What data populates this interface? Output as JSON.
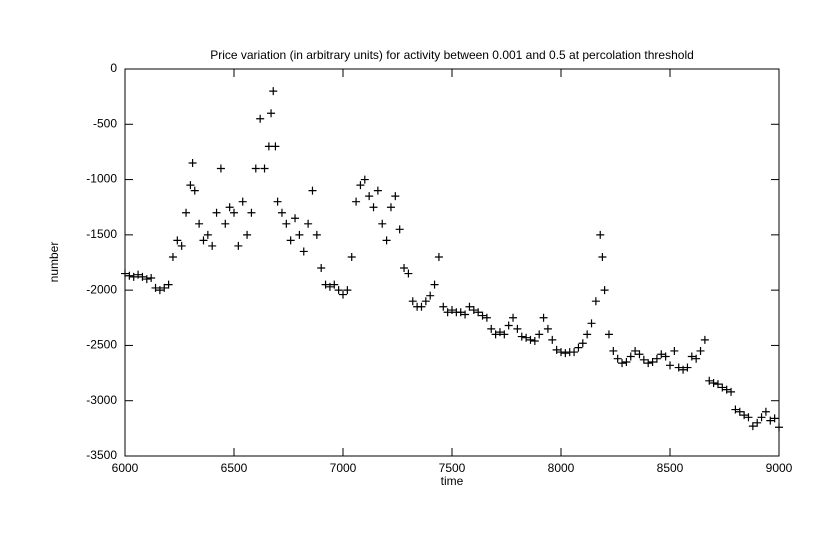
{
  "chart_data": {
    "type": "scatter",
    "title": "Price variation (in arbitrary units) for activity between 0.001 and 0.5 at percolation threshold",
    "x_label": "time",
    "y_label": "number",
    "marker": "+",
    "color": "#000000",
    "xlim": [
      6000,
      9000
    ],
    "xticks": [
      6000,
      6500,
      7000,
      7500,
      8000,
      8500,
      9000
    ],
    "ylim": [
      -3500,
      0
    ],
    "yticks": [
      0,
      -500,
      -1000,
      -1500,
      -2000,
      -2500,
      -3000,
      -3500
    ],
    "x": [
      6000,
      6020,
      6040,
      6060,
      6080,
      6100,
      6120,
      6140,
      6160,
      6180,
      6200,
      6220,
      6240,
      6260,
      6280,
      6300,
      6310,
      6320,
      6340,
      6360,
      6380,
      6400,
      6420,
      6440,
      6460,
      6480,
      6500,
      6520,
      6540,
      6560,
      6580,
      6600,
      6620,
      6640,
      6660,
      6670,
      6680,
      6690,
      6700,
      6720,
      6740,
      6760,
      6780,
      6800,
      6820,
      6840,
      6860,
      6880,
      6900,
      6920,
      6940,
      6960,
      6980,
      7000,
      7020,
      7040,
      7060,
      7080,
      7100,
      7120,
      7140,
      7160,
      7180,
      7200,
      7220,
      7240,
      7260,
      7280,
      7300,
      7320,
      7340,
      7360,
      7380,
      7400,
      7420,
      7440,
      7460,
      7480,
      7500,
      7520,
      7540,
      7560,
      7580,
      7600,
      7620,
      7640,
      7660,
      7680,
      7700,
      7720,
      7740,
      7760,
      7780,
      7800,
      7820,
      7840,
      7860,
      7880,
      7900,
      7920,
      7940,
      7960,
      7980,
      8000,
      8020,
      8040,
      8060,
      8080,
      8100,
      8120,
      8140,
      8160,
      8180,
      8190,
      8200,
      8220,
      8240,
      8260,
      8280,
      8300,
      8320,
      8340,
      8360,
      8380,
      8400,
      8420,
      8440,
      8460,
      8480,
      8500,
      8520,
      8540,
      8560,
      8580,
      8600,
      8620,
      8640,
      8660,
      8680,
      8700,
      8720,
      8740,
      8760,
      8780,
      8800,
      8820,
      8840,
      8860,
      8880,
      8900,
      8920,
      8940,
      8960,
      8980,
      9000
    ],
    "values": [
      -1850,
      -1870,
      -1880,
      -1860,
      -1880,
      -1900,
      -1890,
      -1980,
      -2000,
      -1980,
      -1950,
      -1700,
      -1550,
      -1600,
      -1300,
      -1050,
      -850,
      -1100,
      -1400,
      -1550,
      -1500,
      -1600,
      -1300,
      -900,
      -1400,
      -1250,
      -1300,
      -1600,
      -1200,
      -1500,
      -1300,
      -900,
      -450,
      -900,
      -700,
      -400,
      -200,
      -700,
      -1200,
      -1300,
      -1400,
      -1550,
      -1350,
      -1500,
      -1650,
      -1400,
      -1100,
      -1500,
      -1800,
      -1950,
      -1970,
      -1950,
      -2000,
      -2040,
      -2000,
      -1700,
      -1200,
      -1050,
      -1000,
      -1150,
      -1250,
      -1100,
      -1400,
      -1550,
      -1250,
      -1150,
      -1450,
      -1800,
      -1850,
      -2100,
      -2150,
      -2150,
      -2100,
      -2050,
      -1950,
      -1700,
      -2150,
      -2200,
      -2180,
      -2200,
      -2200,
      -2220,
      -2150,
      -2180,
      -2200,
      -2230,
      -2250,
      -2350,
      -2400,
      -2380,
      -2400,
      -2320,
      -2250,
      -2350,
      -2420,
      -2430,
      -2450,
      -2460,
      -2400,
      -2250,
      -2350,
      -2450,
      -2540,
      -2560,
      -2570,
      -2560,
      -2560,
      -2520,
      -2480,
      -2400,
      -2300,
      -2100,
      -1500,
      -1700,
      -2000,
      -2400,
      -2550,
      -2620,
      -2660,
      -2650,
      -2600,
      -2550,
      -2580,
      -2630,
      -2660,
      -2650,
      -2620,
      -2580,
      -2600,
      -2680,
      -2550,
      -2700,
      -2720,
      -2700,
      -2600,
      -2620,
      -2550,
      -2450,
      -2820,
      -2840,
      -2850,
      -2880,
      -2900,
      -2920,
      -3080,
      -3100,
      -3130,
      -3150,
      -3230,
      -3200,
      -3150,
      -3100,
      -3180,
      -3160,
      -3240
    ]
  }
}
